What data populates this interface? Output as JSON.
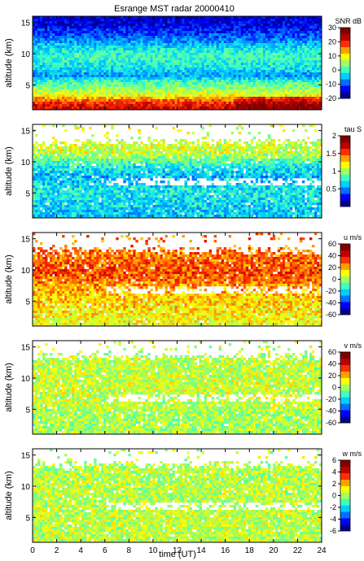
{
  "colors": {
    "colormap": [
      "#00008f",
      "#0000ff",
      "#0070ff",
      "#00d0ff",
      "#40ffc0",
      "#a0ff60",
      "#ffff00",
      "#ffa000",
      "#ff3000",
      "#c00000",
      "#800000"
    ]
  },
  "chart_data": {
    "type": "heatmap",
    "title": "Esrange MST radar 20000410",
    "xlabel": "time (UT)",
    "xlim": [
      0,
      24
    ],
    "xticks": [
      0,
      2,
      4,
      6,
      8,
      10,
      12,
      14,
      16,
      18,
      20,
      22,
      24
    ],
    "colormap": "jet",
    "panels": [
      {
        "id": "snr",
        "ylabel": "altitude (km)",
        "ylim": [
          1,
          16
        ],
        "yticks": [
          5,
          10,
          15
        ],
        "colorbar_label": "SNR dB",
        "clim": [
          -20,
          30
        ],
        "colorbar_ticks": [
          -20,
          -10,
          0,
          10,
          20,
          30
        ],
        "altitude_profile": [
          {
            "alt": 1.5,
            "value": 24
          },
          {
            "alt": 2.5,
            "value": 18
          },
          {
            "alt": 3.5,
            "value": 8
          },
          {
            "alt": 4.5,
            "value": 4
          },
          {
            "alt": 5.5,
            "value": 0
          },
          {
            "alt": 6.5,
            "value": -8
          },
          {
            "alt": 7.5,
            "value": -4
          },
          {
            "alt": 8.5,
            "value": -2
          },
          {
            "alt": 9.5,
            "value": 0
          },
          {
            "alt": 10.5,
            "value": -2
          },
          {
            "alt": 11.5,
            "value": -6
          },
          {
            "alt": 12.5,
            "value": -10
          },
          {
            "alt": 13.5,
            "value": -13
          },
          {
            "alt": 14.5,
            "value": -16
          },
          {
            "alt": 15.5,
            "value": -17
          }
        ]
      },
      {
        "id": "tau",
        "ylabel": "altitude (km)",
        "ylim": [
          1,
          16
        ],
        "yticks": [
          5,
          10,
          15
        ],
        "colorbar_label": "tau S",
        "clim": [
          0,
          2
        ],
        "colorbar_ticks": [
          0.5,
          1,
          1.5,
          2
        ],
        "altitude_profile": [
          {
            "alt": 1.5,
            "value": 0.6
          },
          {
            "alt": 3.5,
            "value": 0.65
          },
          {
            "alt": 5.5,
            "value": 0.7
          },
          {
            "alt": 7.5,
            "value": 0.55
          },
          {
            "alt": 9.5,
            "value": 0.75
          },
          {
            "alt": 11.5,
            "value": 1.1
          }
        ]
      },
      {
        "id": "u",
        "ylabel": "altitude (km)",
        "ylim": [
          1,
          16
        ],
        "yticks": [
          5,
          10,
          15
        ],
        "colorbar_label": "u m/s",
        "clim": [
          -60,
          60
        ],
        "colorbar_ticks": [
          -60,
          -40,
          -20,
          0,
          20,
          40,
          60
        ],
        "altitude_profile": [
          {
            "alt": 1.5,
            "value": 10
          },
          {
            "alt": 3.5,
            "value": 15
          },
          {
            "alt": 5.5,
            "value": 18
          },
          {
            "alt": 7.5,
            "value": 25
          },
          {
            "alt": 9.5,
            "value": 35
          },
          {
            "alt": 11.5,
            "value": 30
          }
        ]
      },
      {
        "id": "v",
        "ylabel": "altitude (km)",
        "ylim": [
          1,
          16
        ],
        "yticks": [
          5,
          10,
          15
        ],
        "colorbar_label": "v m/s",
        "clim": [
          -60,
          60
        ],
        "colorbar_ticks": [
          -60,
          -40,
          -20,
          0,
          20,
          40,
          60
        ],
        "altitude_profile": [
          {
            "alt": 1.5,
            "value": 2
          },
          {
            "alt": 3.5,
            "value": 0
          },
          {
            "alt": 5.5,
            "value": 4
          },
          {
            "alt": 7.5,
            "value": 5
          },
          {
            "alt": 9.5,
            "value": 6
          },
          {
            "alt": 11.5,
            "value": 4
          }
        ]
      },
      {
        "id": "w",
        "ylabel": "altitude (km)",
        "ylim": [
          1,
          16
        ],
        "yticks": [
          5,
          10,
          15
        ],
        "colorbar_label": "w m/s",
        "clim": [
          -6,
          6
        ],
        "colorbar_ticks": [
          -6,
          -4,
          -2,
          0,
          2,
          4,
          6
        ],
        "altitude_profile": [
          {
            "alt": 1.5,
            "value": 0.5
          },
          {
            "alt": 3.5,
            "value": 0.4
          },
          {
            "alt": 5.5,
            "value": 0.5
          },
          {
            "alt": 7.5,
            "value": 0.3
          },
          {
            "alt": 9.5,
            "value": 0.4
          },
          {
            "alt": 11.5,
            "value": 0.3
          }
        ]
      }
    ]
  }
}
